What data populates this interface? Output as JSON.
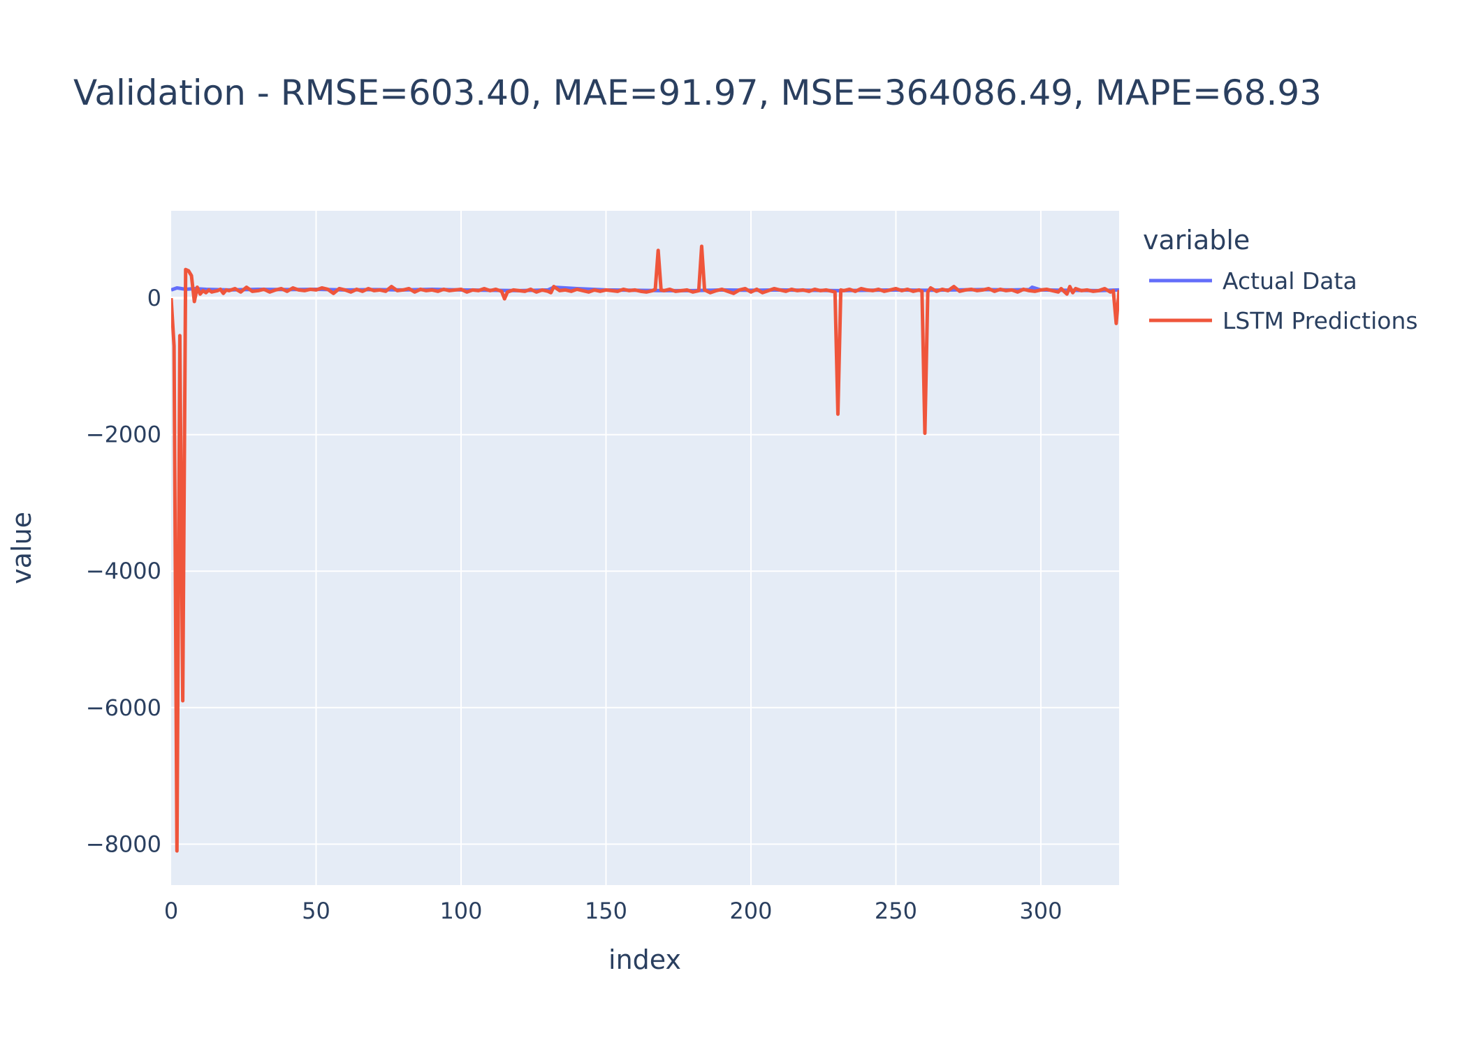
{
  "chart_data": {
    "type": "line",
    "title": "Validation - RMSE=603.40, MAE=91.97, MSE=364086.49, MAPE=68.93",
    "xlabel": "index",
    "ylabel": "value",
    "xlim": [
      0,
      327
    ],
    "ylim": [
      -8600,
      1280
    ],
    "x_ticks": [
      0,
      50,
      100,
      150,
      200,
      250,
      300
    ],
    "x_tick_labels": [
      "0",
      "50",
      "100",
      "150",
      "200",
      "250",
      "300"
    ],
    "y_ticks": [
      0,
      -2000,
      -4000,
      -6000,
      -8000
    ],
    "y_tick_labels": [
      "0",
      "−2000",
      "−4000",
      "−6000",
      "−8000"
    ],
    "grid": true,
    "legend": {
      "title": "variable",
      "position": "right"
    },
    "colors": {
      "plot_bg": "#e5ecf6",
      "grid": "#ffffff",
      "text": "#2a3f5f",
      "actual": "#636efa",
      "lstm": "#ef553b"
    },
    "series": [
      {
        "name": "Actual Data",
        "color": "#636efa",
        "x": [
          0,
          2,
          5,
          8,
          12,
          20,
          30,
          40,
          50,
          60,
          70,
          80,
          90,
          100,
          110,
          120,
          130,
          131,
          132,
          140,
          150,
          160,
          170,
          180,
          190,
          200,
          210,
          220,
          230,
          240,
          250,
          260,
          270,
          280,
          290,
          296,
          297,
          300,
          310,
          320,
          327
        ],
        "y": [
          120,
          150,
          130,
          140,
          130,
          120,
          130,
          125,
          130,
          120,
          125,
          120,
          130,
          120,
          115,
          110,
          120,
          140,
          160,
          140,
          120,
          115,
          110,
          110,
          120,
          115,
          120,
          115,
          110,
          115,
          120,
          115,
          120,
          125,
          120,
          125,
          160,
          120,
          115,
          110,
          120
        ]
      },
      {
        "name": "LSTM Predictions",
        "color": "#ef553b",
        "x": [
          0,
          1,
          2,
          3,
          4,
          5,
          6,
          7,
          8,
          9,
          10,
          11,
          12,
          13,
          14,
          15,
          16,
          17,
          18,
          19,
          20,
          22,
          24,
          26,
          28,
          30,
          32,
          34,
          36,
          38,
          40,
          42,
          44,
          46,
          48,
          50,
          52,
          54,
          56,
          58,
          60,
          62,
          64,
          66,
          68,
          70,
          72,
          74,
          76,
          78,
          80,
          82,
          84,
          86,
          88,
          90,
          92,
          94,
          96,
          98,
          100,
          102,
          104,
          106,
          108,
          110,
          112,
          114,
          115,
          116,
          118,
          120,
          122,
          124,
          126,
          128,
          130,
          131,
          132,
          134,
          136,
          138,
          140,
          142,
          144,
          146,
          148,
          150,
          152,
          154,
          156,
          158,
          160,
          162,
          164,
          166,
          167,
          168,
          169,
          170,
          172,
          174,
          176,
          178,
          180,
          182,
          183,
          184,
          185,
          186,
          188,
          190,
          192,
          194,
          196,
          198,
          200,
          202,
          204,
          206,
          208,
          210,
          212,
          214,
          216,
          218,
          220,
          222,
          224,
          226,
          228,
          229,
          230,
          231,
          232,
          234,
          236,
          238,
          240,
          242,
          244,
          246,
          248,
          250,
          252,
          254,
          256,
          258,
          259,
          260,
          261,
          262,
          264,
          266,
          268,
          270,
          272,
          274,
          276,
          278,
          280,
          282,
          284,
          286,
          288,
          290,
          292,
          294,
          296,
          298,
          300,
          302,
          304,
          306,
          307,
          308,
          309,
          310,
          311,
          312,
          314,
          316,
          318,
          320,
          322,
          324,
          325,
          326,
          327
        ],
        "y": [
          0,
          -700,
          -8100,
          -550,
          -5900,
          420,
          400,
          330,
          -50,
          160,
          60,
          110,
          80,
          120,
          90,
          100,
          110,
          130,
          70,
          120,
          110,
          140,
          90,
          160,
          100,
          110,
          130,
          90,
          120,
          140,
          100,
          150,
          120,
          110,
          130,
          120,
          150,
          130,
          70,
          140,
          120,
          90,
          130,
          100,
          140,
          110,
          120,
          100,
          170,
          110,
          120,
          140,
          90,
          130,
          110,
          120,
          100,
          130,
          110,
          120,
          130,
          90,
          120,
          110,
          140,
          110,
          130,
          100,
          -10,
          90,
          120,
          110,
          100,
          130,
          90,
          120,
          100,
          80,
          170,
          110,
          120,
          100,
          130,
          110,
          90,
          120,
          100,
          120,
          110,
          100,
          130,
          110,
          120,
          100,
          90,
          110,
          130,
          700,
          120,
          110,
          130,
          100,
          110,
          120,
          90,
          110,
          760,
          120,
          100,
          80,
          110,
          130,
          100,
          70,
          120,
          140,
          90,
          130,
          80,
          110,
          140,
          120,
          100,
          130,
          110,
          120,
          100,
          130,
          110,
          120,
          100,
          90,
          -1700,
          120,
          110,
          130,
          100,
          140,
          120,
          110,
          130,
          100,
          120,
          140,
          110,
          130,
          100,
          120,
          100,
          -1980,
          90,
          150,
          100,
          130,
          110,
          170,
          100,
          120,
          130,
          110,
          120,
          140,
          100,
          130,
          110,
          120,
          90,
          130,
          110,
          100,
          120,
          130,
          110,
          90,
          140,
          100,
          60,
          170,
          80,
          140,
          110,
          120,
          100,
          110,
          140,
          90,
          110,
          -370,
          120
        ]
      }
    ]
  }
}
